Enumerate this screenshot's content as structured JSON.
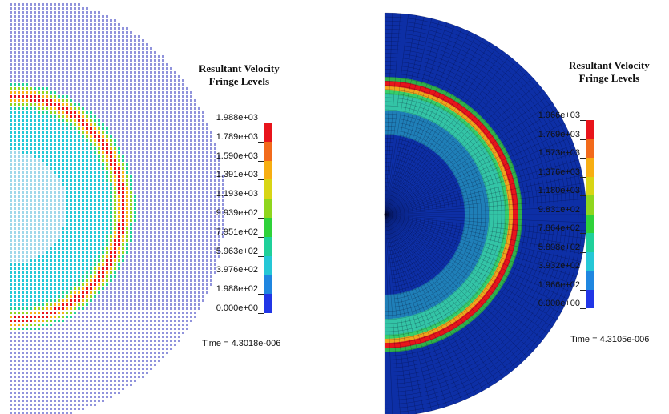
{
  "left": {
    "legend_title_line1": "Resultant Velocity",
    "legend_title_line2": "Fringe Levels",
    "levels": [
      "1.988e+03",
      "1.789e+03",
      "1.590e+03",
      "1.391e+03",
      "1.193e+03",
      "9.939e+02",
      "7.951e+02",
      "5.963e+02",
      "3.976e+02",
      "1.988e+02",
      "0.000e+00"
    ],
    "time_label": "Time = 4.3018e-006"
  },
  "right": {
    "legend_title_line1": "Resultant Velocity",
    "legend_title_line2": "Fringe Levels",
    "levels": [
      "1.966e+03",
      "1.769e+03",
      "1.573e+03",
      "1.376e+03",
      "1.180e+03",
      "9.831e+02",
      "7.864e+02",
      "5.898e+02",
      "3.932e+02",
      "1.966e+02",
      "0.000e+00"
    ],
    "time_label": "Time = 4.3105e-006"
  },
  "fringe_colors": [
    "#e8141b",
    "#f26a1b",
    "#f7ae12",
    "#d8d515",
    "#8fd61e",
    "#2fd23a",
    "#1fd09a",
    "#25c7d6",
    "#1f86e0",
    "#2136e6"
  ]
}
